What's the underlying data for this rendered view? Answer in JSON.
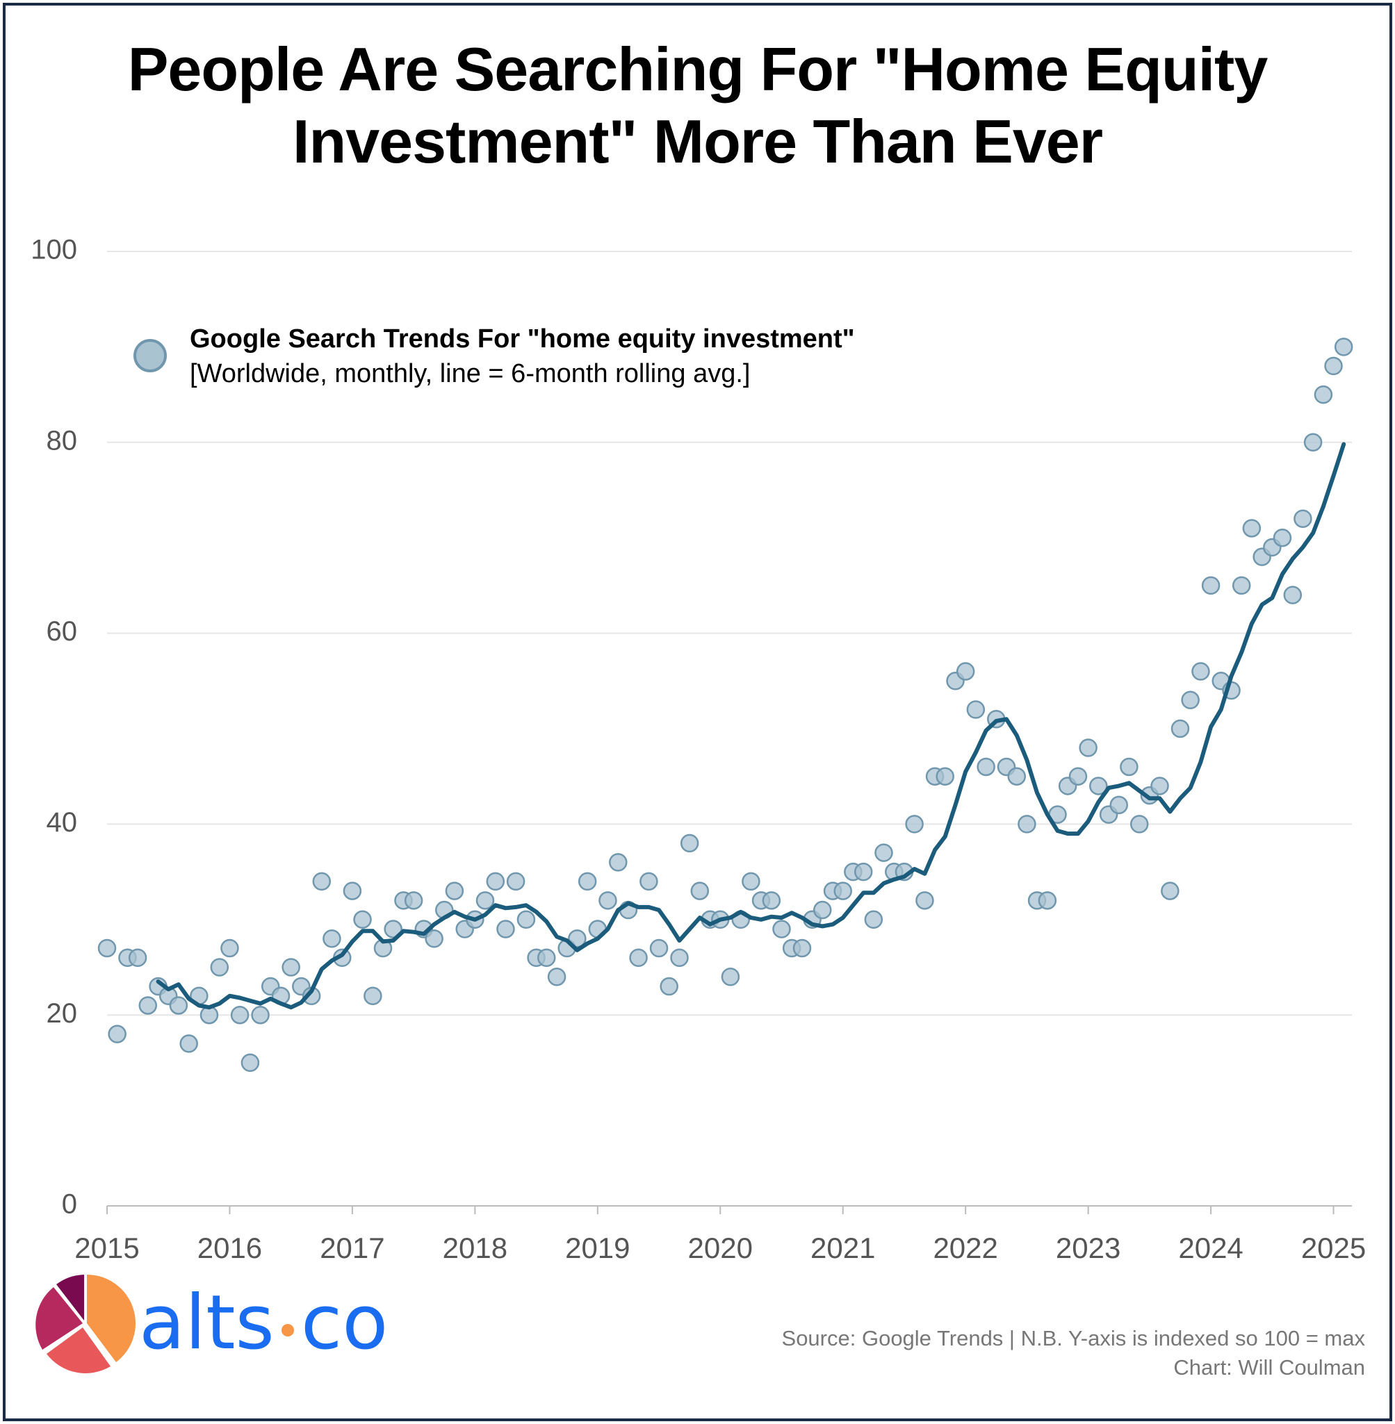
{
  "chart_data": {
    "type": "scatter",
    "title": "People Are Searching For \"Home Equity Investment\" More Than Ever",
    "legend_subtitle": "[Worldwide, monthly, line = 6-month rolling avg.]",
    "source": "Source: Google Trends | N.B. Y-axis is indexed so 100 = max",
    "credit": "Chart: Will Coulman",
    "logo_text": [
      "alts",
      "co"
    ],
    "xlim": [
      2015,
      2025.15
    ],
    "xticks": [
      2015,
      2016,
      2017,
      2018,
      2019,
      2020,
      2021,
      2022,
      2023,
      2024,
      2025
    ],
    "ylim": [
      0,
      100
    ],
    "yticks": [
      0,
      20,
      40,
      60,
      80,
      100
    ],
    "grid": true,
    "x": [
      2015,
      2015.083,
      2015.167,
      2015.25,
      2015.333,
      2015.417,
      2015.5,
      2015.583,
      2015.667,
      2015.75,
      2015.833,
      2015.917,
      2016,
      2016.083,
      2016.167,
      2016.25,
      2016.333,
      2016.417,
      2016.5,
      2016.583,
      2016.667,
      2016.75,
      2016.833,
      2016.917,
      2017,
      2017.083,
      2017.167,
      2017.25,
      2017.333,
      2017.417,
      2017.5,
      2017.583,
      2017.667,
      2017.75,
      2017.833,
      2017.917,
      2018,
      2018.083,
      2018.167,
      2018.25,
      2018.333,
      2018.417,
      2018.5,
      2018.583,
      2018.667,
      2018.75,
      2018.833,
      2018.917,
      2019,
      2019.083,
      2019.167,
      2019.25,
      2019.333,
      2019.417,
      2019.5,
      2019.583,
      2019.667,
      2019.75,
      2019.833,
      2019.917,
      2020,
      2020.083,
      2020.167,
      2020.25,
      2020.333,
      2020.417,
      2020.5,
      2020.583,
      2020.667,
      2020.75,
      2020.833,
      2020.917,
      2021,
      2021.083,
      2021.167,
      2021.25,
      2021.333,
      2021.417,
      2021.5,
      2021.583,
      2021.667,
      2021.75,
      2021.833,
      2021.917,
      2022,
      2022.083,
      2022.167,
      2022.25,
      2022.333,
      2022.417,
      2022.5,
      2022.583,
      2022.667,
      2022.75,
      2022.833,
      2022.917,
      2023,
      2023.083,
      2023.167,
      2023.25,
      2023.333,
      2023.417,
      2023.5,
      2023.583,
      2023.667,
      2023.75,
      2023.833,
      2023.917,
      2024,
      2024.083,
      2024.167,
      2024.25,
      2024.333,
      2024.417,
      2024.5,
      2024.583,
      2024.667,
      2024.75,
      2024.833,
      2024.917,
      2025,
      2025.083
    ],
    "series": [
      {
        "name": "Google Search Trends For \"home equity investment\"",
        "type": "scatter",
        "color": "#a9c3d1",
        "stroke": "#7097ad",
        "values": [
          27,
          18,
          26,
          26,
          21,
          23,
          22,
          21,
          17,
          22,
          20,
          25,
          27,
          20,
          15,
          20,
          23,
          22,
          25,
          23,
          22,
          34,
          28,
          26,
          33,
          30,
          22,
          27,
          29,
          32,
          32,
          29,
          28,
          31,
          33,
          29,
          30,
          32,
          34,
          29,
          34,
          30,
          26,
          26,
          24,
          27,
          28,
          34,
          29,
          32,
          36,
          31,
          26,
          34,
          27,
          23,
          26,
          38,
          33,
          30,
          30,
          24,
          30,
          34,
          32,
          32,
          29,
          27,
          27,
          30,
          31,
          33,
          33,
          35,
          35,
          30,
          37,
          35,
          35,
          40,
          32,
          45,
          45,
          55,
          56,
          52,
          46,
          51,
          46,
          45,
          40,
          32,
          32,
          41,
          44,
          45,
          48,
          44,
          41,
          42,
          46,
          40,
          43,
          44,
          33,
          50,
          53,
          56,
          65,
          55,
          54,
          65,
          71,
          68,
          69,
          70,
          64,
          72,
          80,
          85,
          88,
          90
        ]
      },
      {
        "type": "line",
        "color": "#1b5b7c",
        "values": [
          null,
          null,
          null,
          null,
          null,
          23.5,
          22.7,
          23.2,
          21.7,
          21.0,
          20.8,
          21.2,
          22.0,
          21.8,
          21.5,
          21.2,
          21.7,
          21.2,
          20.8,
          21.3,
          22.5,
          24.8,
          25.7,
          26.3,
          27.7,
          28.8,
          28.8,
          27.7,
          27.8,
          28.8,
          28.7,
          28.5,
          29.5,
          30.2,
          30.8,
          30.3,
          30.0,
          30.5,
          31.5,
          31.2,
          31.3,
          31.5,
          30.8,
          29.8,
          28.2,
          27.8,
          26.8,
          27.5,
          28.0,
          29.0,
          31.0,
          31.7,
          31.3,
          31.3,
          31.0,
          29.5,
          27.8,
          29.0,
          30.2,
          29.5,
          30.0,
          30.2,
          30.8,
          30.2,
          30.0,
          30.3,
          30.2,
          30.7,
          30.2,
          29.5,
          29.3,
          29.5,
          30.2,
          31.5,
          32.8,
          32.8,
          33.8,
          34.2,
          34.5,
          35.3,
          34.8,
          37.3,
          38.7,
          42.0,
          45.5,
          47.5,
          49.8,
          50.8,
          51.0,
          49.3,
          46.7,
          43.3,
          41.0,
          39.3,
          39.0,
          39.0,
          40.3,
          42.3,
          43.8,
          44.0,
          44.3,
          43.5,
          42.7,
          42.7,
          41.3,
          42.7,
          43.8,
          46.5,
          50.2,
          52.0,
          55.5,
          58.0,
          61.0,
          63.0,
          63.7,
          66.2,
          67.8,
          69.0,
          70.5,
          73.3,
          76.5,
          79.8
        ]
      }
    ]
  }
}
